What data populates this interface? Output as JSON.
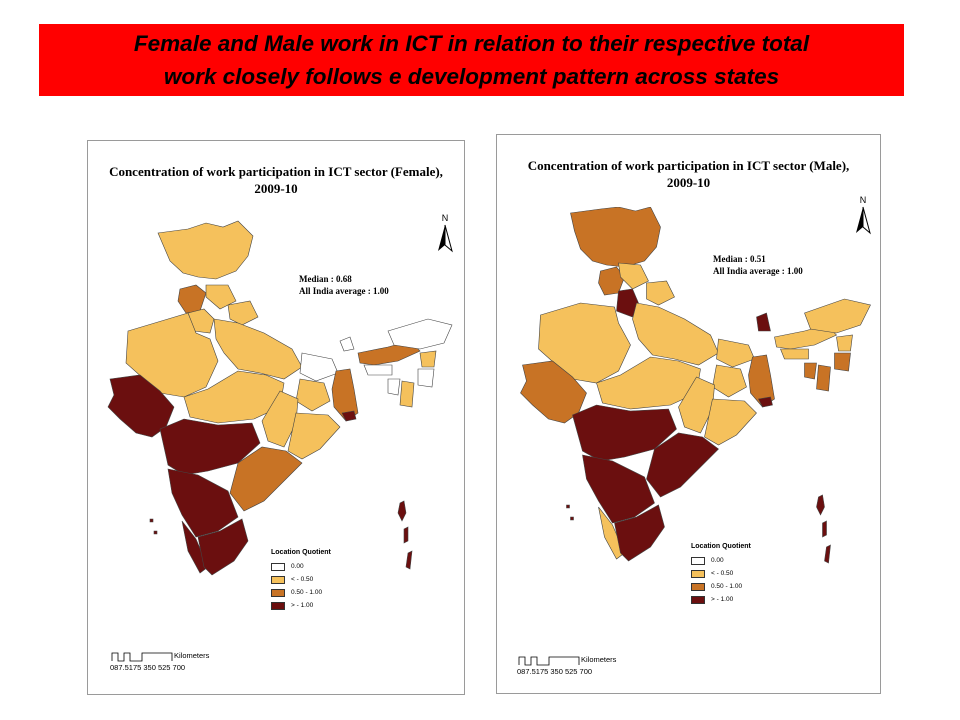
{
  "banner": {
    "line1": "Female and Male work in ICT in relation to their respective total",
    "line2": "work closely follows e development pattern across states"
  },
  "female_map": {
    "title_line1": "Concentration of work participation in ICT sector (Female),",
    "title_line2": "2009-10",
    "median": "Median : 0.68",
    "all_india": "All India average : 1.00",
    "north_label": "N"
  },
  "male_map": {
    "title_line1": "Concentration of work participation in ICT sector (Male),",
    "title_line2": "2009-10",
    "median": "Median : 0.51",
    "all_india": "All India average : 1.00",
    "north_label": "N"
  },
  "legend": {
    "title": "Location Quotient",
    "classes": [
      {
        "label": "0.00",
        "color": "#ffffff"
      },
      {
        "label": "<    - 0.50",
        "color": "#f5c15c"
      },
      {
        "label": "0.50 - 1.00",
        "color": "#c87325"
      },
      {
        "label": ">    - 1.00",
        "color": "#6b0f0f"
      }
    ]
  },
  "scale": {
    "unit": "Kilometers",
    "ticks": "087.5175  350  525  700"
  },
  "colors": {
    "banner": "#ff0000",
    "class_zero": "#ffffff",
    "class_low": "#f5c15c",
    "class_mid": "#c87325",
    "class_high": "#6b0f0f"
  }
}
